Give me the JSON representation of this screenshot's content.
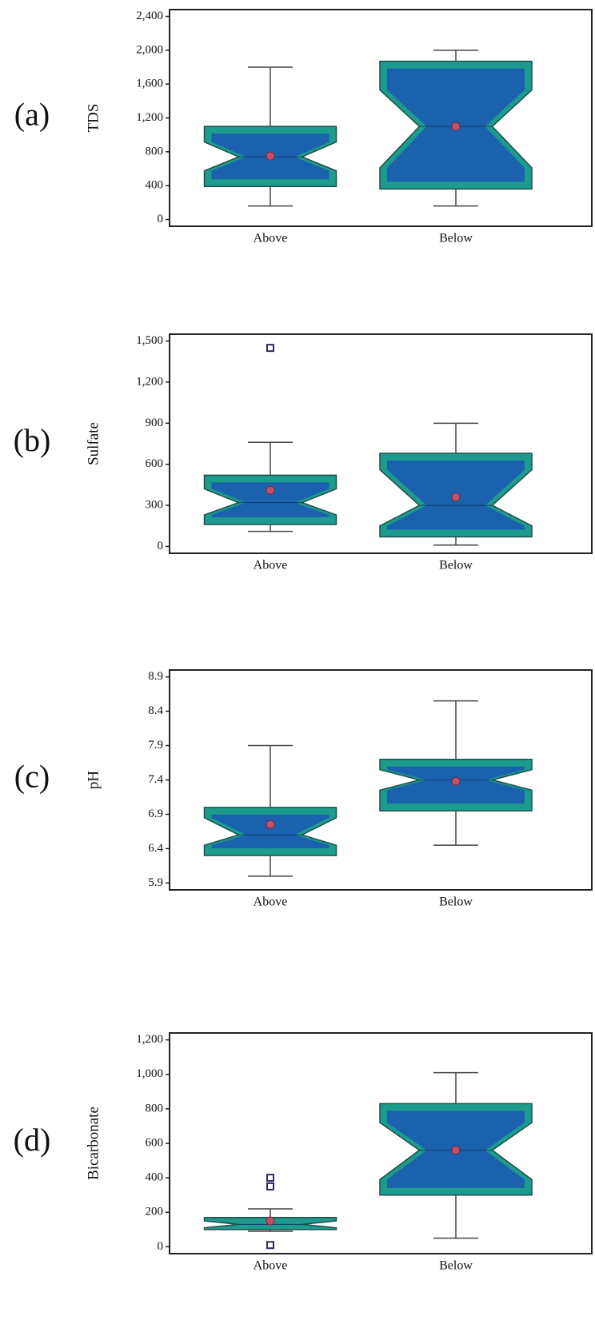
{
  "chart_data": [
    {
      "type": "box",
      "panel_label": "(a)",
      "y_label": "TDS",
      "categories": [
        "Above",
        "Below"
      ],
      "boxes": [
        {
          "whisker_low": 160,
          "q1": 390,
          "notch_low": 575,
          "median": 740,
          "notch_high": 915,
          "q3": 1100,
          "whisker_high": 1800,
          "mean": 750,
          "outliers": []
        },
        {
          "whisker_low": 160,
          "q1": 360,
          "notch_low": 610,
          "median": 1100,
          "notch_high": 1530,
          "q3": 1870,
          "whisker_high": 2000,
          "mean": 1100,
          "outliers": []
        }
      ],
      "ylim": [
        -80,
        2480
      ],
      "yticks": [
        0,
        400,
        800,
        {
          "value": 1200,
          "label": "1,200"
        },
        {
          "value": 1600,
          "label": "1,600"
        },
        {
          "value": 2000,
          "label": "2,000"
        },
        {
          "value": 2400,
          "label": "2,400"
        }
      ],
      "box_color": "#1d9b8c",
      "inner_color": "#1a62ad",
      "mean_color": "#c2506a"
    },
    {
      "type": "box",
      "panel_label": "(b)",
      "y_label": "Sulfate",
      "categories": [
        "Above",
        "Below"
      ],
      "boxes": [
        {
          "whisker_low": 110,
          "q1": 160,
          "notch_low": 230,
          "median": 320,
          "notch_high": 420,
          "q3": 520,
          "whisker_high": 760,
          "mean": 410,
          "outliers": [
            1450
          ]
        },
        {
          "whisker_low": 10,
          "q1": 70,
          "notch_low": 150,
          "median": 300,
          "notch_high": 560,
          "q3": 680,
          "whisker_high": 900,
          "mean": 360,
          "outliers": []
        }
      ],
      "ylim": [
        -50,
        1550
      ],
      "yticks": [
        0,
        300,
        600,
        900,
        {
          "value": 1200,
          "label": "1,200"
        },
        {
          "value": 1500,
          "label": "1,500"
        }
      ],
      "box_color": "#1d9b8c",
      "inner_color": "#1a62ad",
      "mean_color": "#c2506a"
    },
    {
      "type": "box",
      "panel_label": "(c)",
      "y_label": "pH",
      "categories": [
        "Above",
        "Below"
      ],
      "boxes": [
        {
          "whisker_low": 6.0,
          "q1": 6.3,
          "notch_low": 6.45,
          "median": 6.6,
          "notch_high": 6.85,
          "q3": 7.0,
          "whisker_high": 7.9,
          "mean": 6.75,
          "outliers": []
        },
        {
          "whisker_low": 6.45,
          "q1": 6.95,
          "notch_low": 7.25,
          "median": 7.4,
          "notch_high": 7.55,
          "q3": 7.7,
          "whisker_high": 8.55,
          "mean": 7.38,
          "outliers": []
        }
      ],
      "ylim": [
        5.8,
        9.0
      ],
      "yticks": [
        5.9,
        6.4,
        6.9,
        7.4,
        7.9,
        8.4,
        8.9
      ],
      "box_color": "#1d9b8c",
      "inner_color": "#1a62ad",
      "mean_color": "#c2506a"
    },
    {
      "type": "box",
      "panel_label": "(d)",
      "y_label": "Bicarbonate",
      "categories": [
        "Above",
        "Below"
      ],
      "boxes": [
        {
          "whisker_low": 90,
          "q1": 100,
          "notch_low": 110,
          "median": 130,
          "notch_high": 150,
          "q3": 170,
          "whisker_high": 220,
          "mean": 150,
          "outliers": [
            10,
            350,
            400
          ]
        },
        {
          "whisker_low": 50,
          "q1": 300,
          "notch_low": 390,
          "median": 560,
          "notch_high": 720,
          "q3": 830,
          "whisker_high": 1010,
          "mean": 560,
          "outliers": []
        }
      ],
      "ylim": [
        -40,
        1240
      ],
      "yticks": [
        0,
        200,
        400,
        600,
        800,
        {
          "value": 1000,
          "label": "1,000"
        },
        {
          "value": 1200,
          "label": "1,200"
        }
      ],
      "box_color": "#1d9b8c",
      "inner_color": "#1a62ad",
      "mean_color": "#c2506a"
    }
  ]
}
